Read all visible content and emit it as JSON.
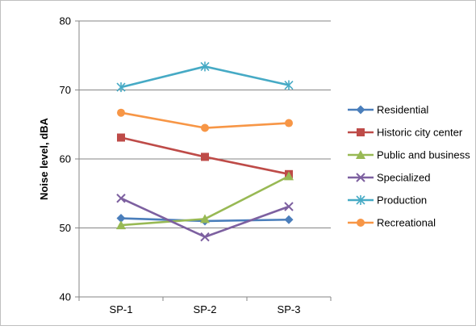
{
  "chart_data": {
    "type": "line",
    "title": "",
    "xlabel": "",
    "ylabel": "Noise level, dBA",
    "ylim": [
      40,
      80
    ],
    "yticks": [
      "40",
      "50",
      "60",
      "70",
      "80"
    ],
    "categories": [
      "SP-1",
      "SP-2",
      "SP-3"
    ],
    "grid": "horizontal",
    "legend_position": "right",
    "series": [
      {
        "name": "Residential",
        "values": [
          51.4,
          51.0,
          51.2
        ],
        "color": "#4a7ebb",
        "marker": "diamond"
      },
      {
        "name": "Historic city center",
        "values": [
          63.1,
          60.3,
          57.8
        ],
        "color": "#be4b48",
        "marker": "square"
      },
      {
        "name": "Public and business",
        "values": [
          50.4,
          51.3,
          57.5
        ],
        "color": "#98b954",
        "marker": "triangle"
      },
      {
        "name": "Specialized",
        "values": [
          54.3,
          48.7,
          53.1
        ],
        "color": "#7d60a0",
        "marker": "x"
      },
      {
        "name": "Production",
        "values": [
          70.4,
          73.4,
          70.7
        ],
        "color": "#46aac5",
        "marker": "star"
      },
      {
        "name": "Recreational",
        "values": [
          66.7,
          64.5,
          65.2
        ],
        "color": "#f79646",
        "marker": "circle"
      }
    ]
  }
}
